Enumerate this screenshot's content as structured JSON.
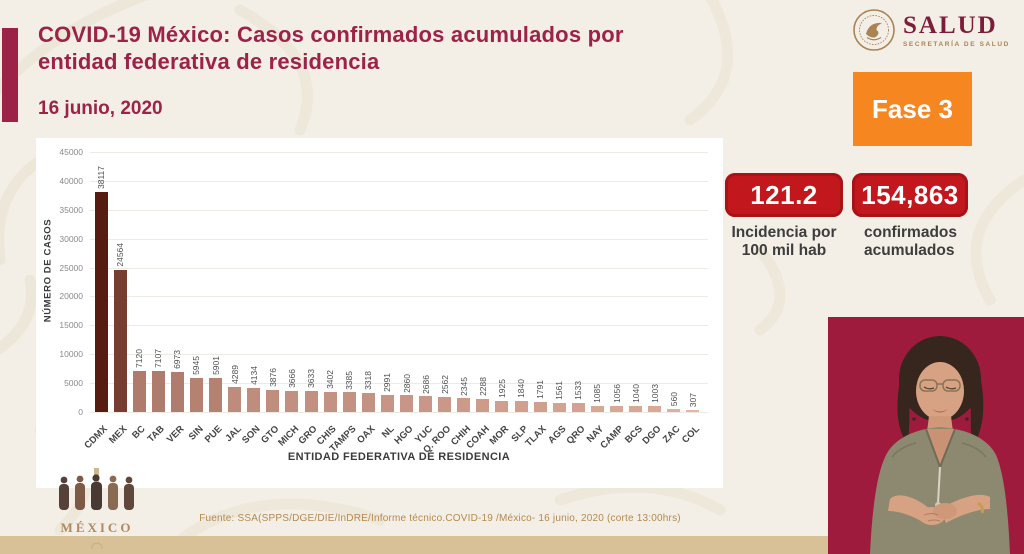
{
  "header": {
    "title_line1": "COVID-19 México: Casos confirmados acumulados por",
    "title_line2": "entidad federativa de residencia",
    "date": "16 junio, 2020"
  },
  "salud_logo": {
    "wordmark": "SALUD",
    "subtitle": "SECRETARÍA DE SALUD"
  },
  "phase_badge": {
    "label": "Fase 3",
    "color": "#f6861f"
  },
  "stats": {
    "incidence": {
      "value": "121.2",
      "label_line1": "Incidencia por",
      "label_line2": "100 mil hab"
    },
    "confirmed": {
      "value": "154,863",
      "label_line1": "confirmados",
      "label_line2": "acumulados"
    }
  },
  "chart_data": {
    "type": "bar",
    "title": "",
    "xlabel": "ENTIDAD FEDERATIVA DE RESIDENCIA",
    "ylabel": "NÚMERO DE CASOS",
    "ylim": [
      0,
      45000
    ],
    "ytick_step": 5000,
    "grid": true,
    "legend": false,
    "bar_color_scale": {
      "min_color": "#f2c4b2",
      "max_color": "#571c10"
    },
    "categories": [
      "CDMX",
      "MEX",
      "BC",
      "TAB",
      "VER",
      "SIN",
      "PUE",
      "JAL",
      "SON",
      "GTO",
      "MICH",
      "GRO",
      "CHIS",
      "TAMPS",
      "OAX",
      "NL",
      "HGO",
      "YUC",
      "Q. ROO",
      "CHIH",
      "COAH",
      "MOR",
      "SLP",
      "TLAX",
      "AGS",
      "QRO",
      "NAY",
      "CAMP",
      "BCS",
      "DGO",
      "ZAC",
      "COL"
    ],
    "values": [
      38117,
      24564,
      7120,
      7107,
      6973,
      5945,
      5901,
      4289,
      4134,
      3876,
      3666,
      3633,
      3402,
      3385,
      3318,
      2991,
      2860,
      2686,
      2562,
      2345,
      2288,
      1925,
      1840,
      1791,
      1561,
      1533,
      1085,
      1056,
      1040,
      1003,
      560,
      307
    ]
  },
  "footer": {
    "source": "Fuente: SSA(SPPS/DGE/DIE/InDRE/Informe técnico.COVID-19 /México- 16 junio, 2020 (corte 13:00hrs)",
    "gov_logo_text": "MÉXICO"
  },
  "colors": {
    "accent_burgundy": "#9c2247",
    "badge_red": "#c1171d",
    "phase_orange": "#f6861f",
    "tan": "#b1895c",
    "bottom_band": "#d9c197",
    "video_background": "#9e1b3e"
  }
}
